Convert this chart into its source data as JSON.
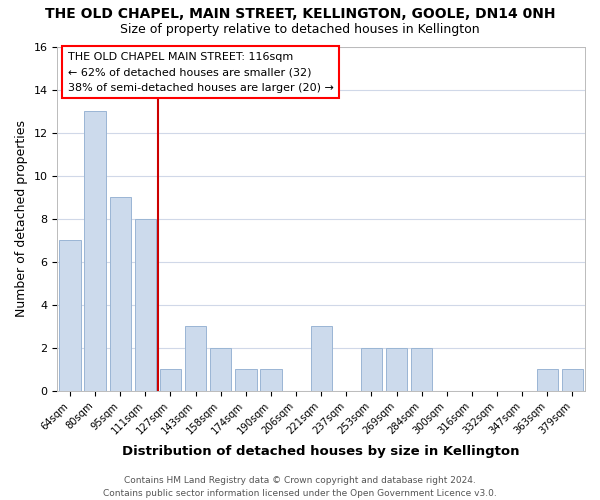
{
  "title": "THE OLD CHAPEL, MAIN STREET, KELLINGTON, GOOLE, DN14 0NH",
  "subtitle": "Size of property relative to detached houses in Kellington",
  "xlabel": "Distribution of detached houses by size in Kellington",
  "ylabel": "Number of detached properties",
  "categories": [
    "64sqm",
    "80sqm",
    "95sqm",
    "111sqm",
    "127sqm",
    "143sqm",
    "158sqm",
    "174sqm",
    "190sqm",
    "206sqm",
    "221sqm",
    "237sqm",
    "253sqm",
    "269sqm",
    "284sqm",
    "300sqm",
    "316sqm",
    "332sqm",
    "347sqm",
    "363sqm",
    "379sqm"
  ],
  "values": [
    7,
    13,
    9,
    8,
    1,
    3,
    2,
    1,
    1,
    0,
    3,
    0,
    2,
    2,
    2,
    0,
    0,
    0,
    0,
    1,
    1
  ],
  "bar_color": "#ccdaec",
  "bar_edge_color": "#9ab5d4",
  "vline_x": 3.5,
  "vline_color": "#cc0000",
  "annotation_title": "THE OLD CHAPEL MAIN STREET: 116sqm",
  "annotation_line1": "← 62% of detached houses are smaller (32)",
  "annotation_line2": "38% of semi-detached houses are larger (20) →",
  "ylim": [
    0,
    16
  ],
  "yticks": [
    0,
    2,
    4,
    6,
    8,
    10,
    12,
    14,
    16
  ],
  "footer_line1": "Contains HM Land Registry data © Crown copyright and database right 2024.",
  "footer_line2": "Contains public sector information licensed under the Open Government Licence v3.0.",
  "bg_color": "#ffffff",
  "plot_bg_color": "#ffffff",
  "grid_color": "#d0d8e8"
}
